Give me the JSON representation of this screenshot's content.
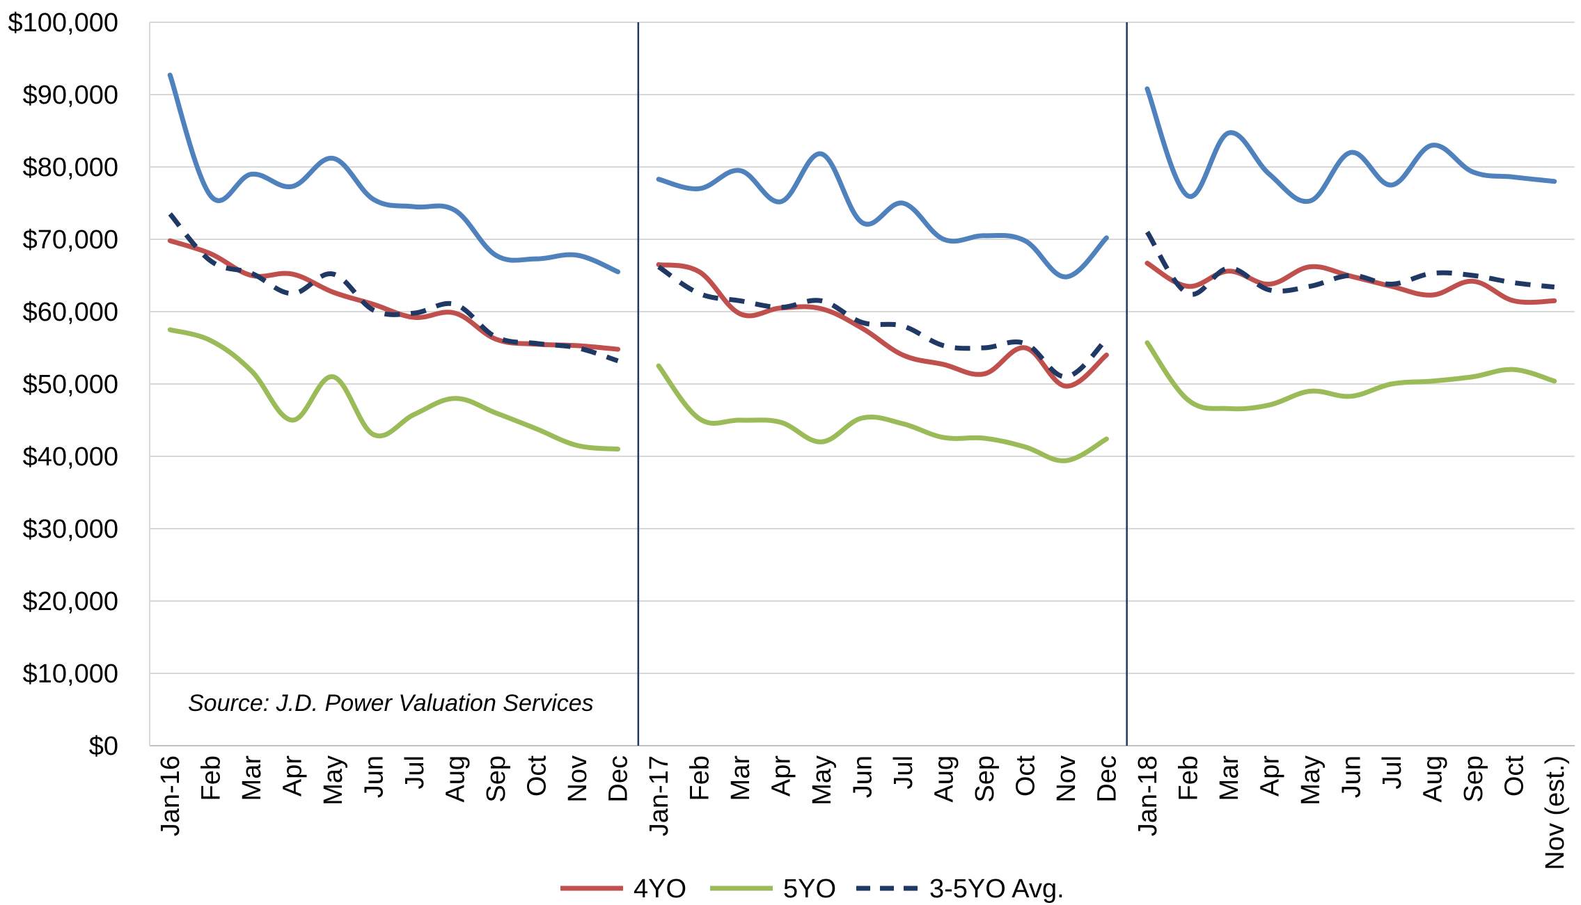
{
  "chart_data": {
    "type": "line",
    "title": "",
    "xlabel": "",
    "ylabel": "",
    "ylim": [
      0,
      100000
    ],
    "y_ticks": [
      "$0",
      "$10,000",
      "$20,000",
      "$30,000",
      "$40,000",
      "$50,000",
      "$60,000",
      "$70,000",
      "$80,000",
      "$90,000",
      "$100,000"
    ],
    "grid": "horizontal",
    "legend_position": "bottom",
    "source_note": "Source:  J.D.  Power  Valuation  Services",
    "segments": [
      {
        "categories": [
          "Jan-16",
          "Feb",
          "Mar",
          "Apr",
          "May",
          "Jun",
          "Jul",
          "Aug",
          "Sep",
          "Oct",
          "Nov",
          "Dec"
        ]
      },
      {
        "categories": [
          "Jan-17",
          "Feb",
          "Mar",
          "Apr",
          "May",
          "Jun",
          "Jul",
          "Aug",
          "Sep",
          "Oct",
          "Nov",
          "Dec"
        ]
      },
      {
        "categories": [
          "Jan-18",
          "Feb",
          "Mar",
          "Apr",
          "May",
          "Jun",
          "Jul",
          "Aug",
          "Sep",
          "Oct",
          "Nov (est.)"
        ]
      }
    ],
    "series": [
      {
        "name": "",
        "color": "#4f81bd",
        "dashed": false,
        "in_legend": false,
        "segments": [
          [
            92700,
            76000,
            79000,
            77300,
            81200,
            75500,
            74500,
            74000,
            67800,
            67300,
            67800,
            65500
          ],
          [
            78300,
            77000,
            79500,
            75200,
            81800,
            72300,
            75000,
            70000,
            70500,
            69800,
            64800,
            70200
          ],
          [
            90800,
            76000,
            84700,
            79000,
            75300,
            82000,
            77500,
            83000,
            79300,
            78600,
            78000
          ]
        ]
      },
      {
        "name": "4YO",
        "color": "#c0504d",
        "dashed": false,
        "in_legend": true,
        "segments": [
          [
            69800,
            68000,
            65000,
            65200,
            62700,
            61000,
            59200,
            59800,
            56200,
            55500,
            55300,
            54800
          ],
          [
            66500,
            65500,
            59700,
            60500,
            60400,
            57700,
            54000,
            52700,
            51400,
            55000,
            49700,
            54000
          ],
          [
            66700,
            63500,
            65600,
            63800,
            66200,
            64900,
            63500,
            62300,
            64200,
            61500,
            61500
          ]
        ]
      },
      {
        "name": "5YO",
        "color": "#9bbb59",
        "dashed": false,
        "in_legend": true,
        "segments": [
          [
            57500,
            56000,
            51800,
            45000,
            51000,
            43000,
            45800,
            48000,
            46000,
            43800,
            41500,
            41000
          ],
          [
            52500,
            45200,
            45000,
            44700,
            42000,
            45300,
            44500,
            42600,
            42500,
            41300,
            39400,
            42400
          ],
          [
            55700,
            47800,
            46600,
            47100,
            49000,
            48300,
            50000,
            50400,
            51000,
            52000,
            50400
          ]
        ]
      },
      {
        "name": "3-5YO Avg.",
        "color": "#1f3864",
        "dashed": true,
        "in_legend": true,
        "segments": [
          [
            73500,
            67000,
            65300,
            62500,
            65200,
            60200,
            59800,
            61000,
            56500,
            55600,
            55000,
            53200
          ],
          [
            66200,
            62500,
            61500,
            60600,
            61500,
            58500,
            58000,
            55300,
            55000,
            55600,
            51000,
            56200
          ],
          [
            71000,
            62500,
            66000,
            63000,
            63500,
            65000,
            63800,
            65300,
            65000,
            64000,
            63400
          ]
        ]
      }
    ]
  }
}
